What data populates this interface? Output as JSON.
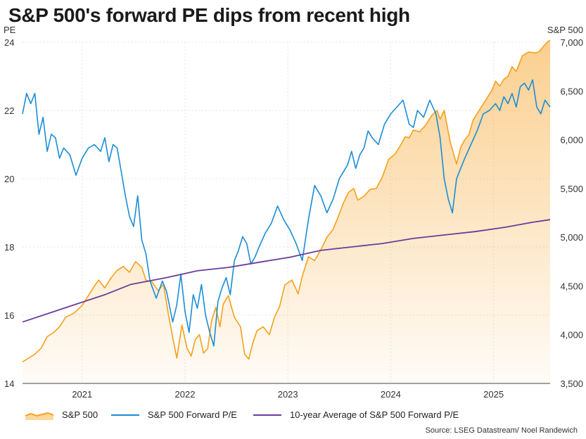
{
  "chart_data": {
    "type": "line",
    "title": "S&P 500's forward PE dips from recent high",
    "left_axis": {
      "label": "PE",
      "range": [
        14,
        24
      ],
      "ticks": [
        "14",
        "16",
        "18",
        "20",
        "22",
        "24"
      ]
    },
    "right_axis": {
      "label": "S&P 500",
      "range": [
        3500,
        7000
      ],
      "ticks": [
        "3,500",
        "4,000",
        "4,500",
        "5,000",
        "5,500",
        "6,000",
        "6,500",
        "7,000"
      ]
    },
    "x_axis": {
      "range": [
        2020.5,
        2025.63
      ],
      "ticks": [
        {
          "value": 2021.08,
          "label": "2021"
        },
        {
          "value": 2022.08,
          "label": "2022"
        },
        {
          "value": 2023.08,
          "label": "2023"
        },
        {
          "value": 2024.08,
          "label": "2024"
        },
        {
          "value": 2025.08,
          "label": "2025"
        }
      ]
    },
    "grid": true,
    "legend_position": "bottom-left",
    "series": [
      {
        "name": "S&P 500",
        "axis": "right",
        "color": "#f6a01a",
        "fill": "gradient",
        "x": [
          2020.5,
          2020.56,
          2020.62,
          2020.68,
          2020.74,
          2020.8,
          2020.86,
          2020.92,
          2021.0,
          2021.08,
          2021.14,
          2021.2,
          2021.24,
          2021.3,
          2021.36,
          2021.42,
          2021.48,
          2021.54,
          2021.6,
          2021.66,
          2021.7,
          2021.76,
          2021.82,
          2021.87,
          2021.92,
          2021.97,
          2022.0,
          2022.05,
          2022.1,
          2022.14,
          2022.18,
          2022.22,
          2022.26,
          2022.3,
          2022.34,
          2022.38,
          2022.42,
          2022.45,
          2022.5,
          2022.56,
          2022.62,
          2022.66,
          2022.7,
          2022.74,
          2022.78,
          2022.84,
          2022.9,
          2022.95,
          2023.0,
          2023.05,
          2023.12,
          2023.18,
          2023.22,
          2023.28,
          2023.34,
          2023.4,
          2023.46,
          2023.52,
          2023.57,
          2023.62,
          2023.67,
          2023.72,
          2023.76,
          2023.82,
          2023.88,
          2023.94,
          2024.0,
          2024.06,
          2024.12,
          2024.18,
          2024.22,
          2024.26,
          2024.3,
          2024.36,
          2024.42,
          2024.48,
          2024.53,
          2024.56,
          2024.6,
          2024.66,
          2024.72,
          2024.76,
          2024.8,
          2024.84,
          2024.88,
          2024.94,
          2025.0,
          2025.06,
          2025.1,
          2025.14,
          2025.18,
          2025.22,
          2025.26,
          2025.3,
          2025.36,
          2025.42,
          2025.48,
          2025.52,
          2025.56,
          2025.6,
          2025.63
        ],
        "values": [
          3720,
          3760,
          3800,
          3860,
          3980,
          4020,
          4080,
          4180,
          4220,
          4300,
          4400,
          4500,
          4560,
          4480,
          4580,
          4660,
          4700,
          4640,
          4750,
          4690,
          4560,
          4540,
          4450,
          4520,
          4200,
          3920,
          3760,
          4100,
          3860,
          3780,
          3950,
          4000,
          3810,
          3860,
          4150,
          4280,
          4080,
          4310,
          4400,
          4180,
          4080,
          3800,
          3750,
          3920,
          4040,
          4080,
          4000,
          4180,
          4290,
          4510,
          4560,
          4420,
          4600,
          4800,
          4760,
          4870,
          5000,
          5080,
          5210,
          5350,
          5460,
          5500,
          5380,
          5420,
          5490,
          5500,
          5620,
          5800,
          5850,
          5950,
          6030,
          6020,
          6100,
          6080,
          6150,
          6250,
          6300,
          6210,
          6300,
          5970,
          5750,
          5920,
          6000,
          6050,
          6200,
          6300,
          6400,
          6500,
          6600,
          6550,
          6620,
          6650,
          6750,
          6700,
          6860,
          6900,
          6890,
          6900,
          6950,
          7000,
          7020
        ]
      },
      {
        "name": "S&P 500 Forward P/E",
        "axis": "left",
        "color": "#1a8dd6",
        "x": [
          2020.5,
          2020.54,
          2020.58,
          2020.62,
          2020.66,
          2020.7,
          2020.74,
          2020.78,
          2020.82,
          2020.86,
          2020.9,
          2020.96,
          2021.02,
          2021.08,
          2021.14,
          2021.2,
          2021.26,
          2021.3,
          2021.34,
          2021.38,
          2021.42,
          2021.46,
          2021.5,
          2021.54,
          2021.58,
          2021.62,
          2021.66,
          2021.7,
          2021.74,
          2021.8,
          2021.86,
          2021.9,
          2021.96,
          2022.0,
          2022.04,
          2022.08,
          2022.12,
          2022.16,
          2022.2,
          2022.24,
          2022.28,
          2022.32,
          2022.36,
          2022.4,
          2022.44,
          2022.48,
          2022.52,
          2022.56,
          2022.6,
          2022.64,
          2022.68,
          2022.72,
          2022.76,
          2022.8,
          2022.86,
          2022.92,
          2022.98,
          2023.04,
          2023.1,
          2023.16,
          2023.22,
          2023.28,
          2023.34,
          2023.4,
          2023.46,
          2023.52,
          2023.58,
          2023.62,
          2023.66,
          2023.7,
          2023.74,
          2023.78,
          2023.82,
          2023.86,
          2023.9,
          2023.96,
          2024.02,
          2024.08,
          2024.14,
          2024.2,
          2024.26,
          2024.3,
          2024.34,
          2024.4,
          2024.46,
          2024.52,
          2024.56,
          2024.6,
          2024.64,
          2024.68,
          2024.72,
          2024.76,
          2024.8,
          2024.86,
          2024.92,
          2024.98,
          2025.04,
          2025.1,
          2025.14,
          2025.18,
          2025.22,
          2025.26,
          2025.3,
          2025.34,
          2025.38,
          2025.42,
          2025.46,
          2025.5,
          2025.54,
          2025.58,
          2025.63
        ],
        "values": [
          21.9,
          22.5,
          22.2,
          22.5,
          21.3,
          21.8,
          20.8,
          21.3,
          21.2,
          20.6,
          20.9,
          20.7,
          20.1,
          20.6,
          20.9,
          21.0,
          20.8,
          21.2,
          20.5,
          21.0,
          20.9,
          20.2,
          19.5,
          18.9,
          18.6,
          19.5,
          18.2,
          17.8,
          17.0,
          16.5,
          17.0,
          16.7,
          15.8,
          16.3,
          17.2,
          16.1,
          15.5,
          16.6,
          16.2,
          16.9,
          16.0,
          15.5,
          15.1,
          16.4,
          16.8,
          17.1,
          16.6,
          17.6,
          17.9,
          18.3,
          18.1,
          17.5,
          17.7,
          18.0,
          18.4,
          18.7,
          19.2,
          18.8,
          18.5,
          18.1,
          17.6,
          18.8,
          19.8,
          19.5,
          19.0,
          19.4,
          20.0,
          20.2,
          20.4,
          20.8,
          20.3,
          20.7,
          20.9,
          21.4,
          21.2,
          21.0,
          21.6,
          21.9,
          22.1,
          22.3,
          21.6,
          21.5,
          22.0,
          21.8,
          22.3,
          21.9,
          21.2,
          20.0,
          19.4,
          19.0,
          20.0,
          20.3,
          20.6,
          21.0,
          21.4,
          21.9,
          22.0,
          22.2,
          22.0,
          22.4,
          22.2,
          22.5,
          22.1,
          22.7,
          22.8,
          22.6,
          22.9,
          22.1,
          21.9,
          22.3,
          22.1
        ]
      },
      {
        "name": "10-year Average of S&P 500 Forward P/E",
        "axis": "left",
        "color": "#6a3d9a",
        "x": [
          2020.5,
          2020.8,
          2021.0,
          2021.3,
          2021.55,
          2021.9,
          2022.2,
          2022.5,
          2022.8,
          2023.1,
          2023.4,
          2023.7,
          2024.0,
          2024.3,
          2024.6,
          2024.9,
          2025.2,
          2025.45,
          2025.63
        ],
        "values": [
          15.8,
          16.1,
          16.3,
          16.6,
          16.9,
          17.1,
          17.3,
          17.4,
          17.55,
          17.7,
          17.9,
          18.0,
          18.1,
          18.25,
          18.35,
          18.45,
          18.58,
          18.72,
          18.8
        ]
      }
    ]
  },
  "legend": {
    "items": [
      {
        "label": "S&P 500",
        "icon": "area-swatch-icon",
        "color": "#f6a01a"
      },
      {
        "label": "S&P 500 Forward P/E",
        "icon": "line-swatch-icon",
        "color": "#1a8dd6"
      },
      {
        "label": "10-year Average of S&P 500 Forward P/E",
        "icon": "line-swatch-icon",
        "color": "#6a3d9a"
      }
    ]
  },
  "source": "Source: LSEG Datastream/ Noel Randewich"
}
